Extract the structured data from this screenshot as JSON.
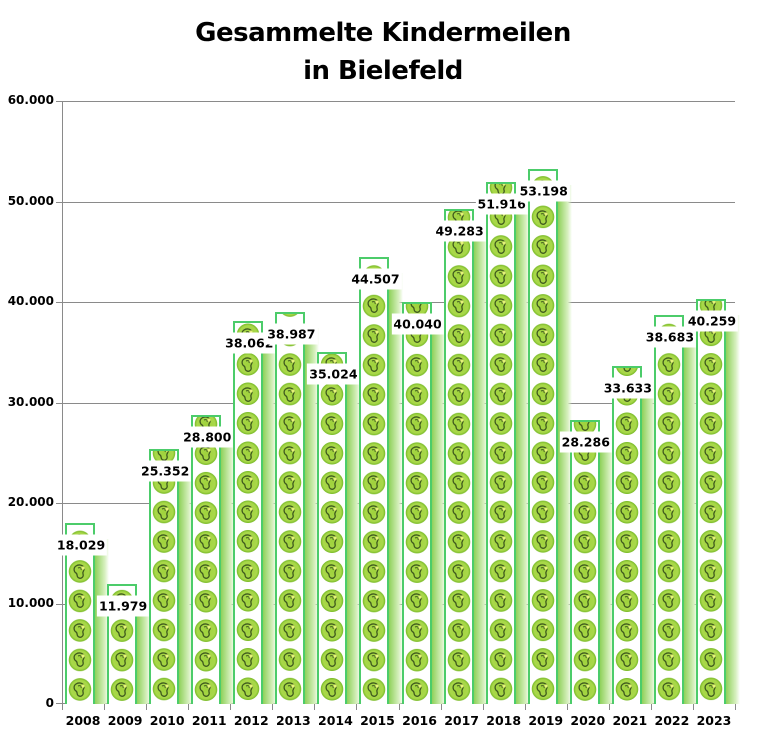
{
  "chart_data": {
    "type": "bar",
    "title": "Gesammelte Kindermeilen in Bielefeld",
    "title_lines": [
      "Gesammelte Kindermeilen",
      "in Bielefeld"
    ],
    "xlabel": "",
    "ylabel": "",
    "ylim": [
      0,
      60000
    ],
    "yticks": [
      {
        "value": 0,
        "label": "0"
      },
      {
        "value": 10000,
        "label": "10.000"
      },
      {
        "value": 20000,
        "label": "20.000"
      },
      {
        "value": 30000,
        "label": "30.000"
      },
      {
        "value": 40000,
        "label": "40.000"
      },
      {
        "value": 50000,
        "label": "50.000"
      },
      {
        "value": 60000,
        "label": "60.000"
      }
    ],
    "grid": true,
    "legend": null,
    "bar_color": "#4ccc6a",
    "fill_icon": "footprint-circle-icon",
    "fill_icon_color": "#9fd23c",
    "categories": [
      "2008",
      "2009",
      "2010",
      "2011",
      "2012",
      "2013",
      "2014",
      "2015",
      "2016",
      "2017",
      "2018",
      "2019",
      "2020",
      "2021",
      "2022",
      "2023"
    ],
    "values": [
      18029,
      11979,
      25352,
      28800,
      38062,
      38987,
      35024,
      44507,
      40040,
      49283,
      51916,
      53198,
      28286,
      33633,
      38683,
      40259
    ],
    "data_labels": [
      "18.029",
      "11.979",
      "25.352",
      "28.800",
      "38.062",
      "38.987",
      "35.024",
      "44.507",
      "40.040",
      "49.283",
      "51.916",
      "53.198",
      "28.286",
      "33.633",
      "38.683",
      "40.259"
    ]
  }
}
